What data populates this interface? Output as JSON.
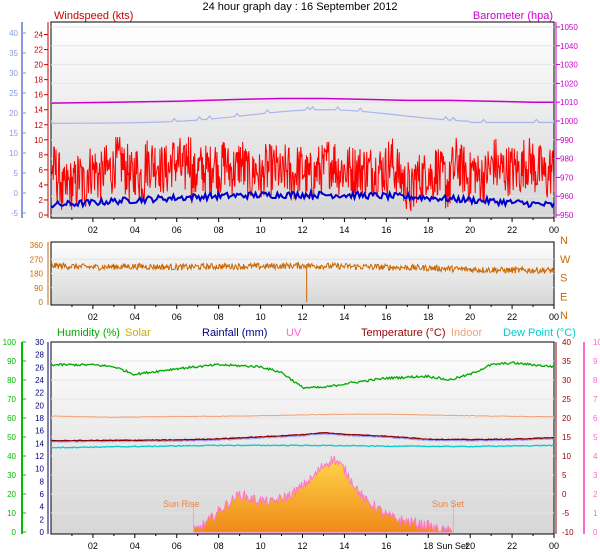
{
  "title": "24 hour graph day : 16 September 2012",
  "panel1": {
    "left_label": "Windspeed (kts)",
    "right_label": "Barometer (hpa)",
    "outer_left_ticks": [
      "40",
      "35",
      "30",
      "25",
      "20",
      "15",
      "10",
      "5",
      "0",
      "-5"
    ],
    "inner_left_ticks": [
      "24",
      "22",
      "20",
      "18",
      "16",
      "14",
      "12",
      "10",
      "8",
      "6",
      "4",
      "2",
      "0"
    ],
    "right_ticks": [
      "1050",
      "1040",
      "1030",
      "1020",
      "1010",
      "1000",
      "990",
      "980",
      "970",
      "960",
      "950"
    ]
  },
  "panel2": {
    "left_ticks": [
      "360",
      "270",
      "180",
      "90",
      "0"
    ],
    "right_ticks": [
      "N",
      "W",
      "S",
      "E",
      "N"
    ]
  },
  "panel3": {
    "labels": {
      "humidity": "Humidity (%)",
      "solar": "Solar",
      "rainfall": "Rainfall (mm)",
      "uv": "UV",
      "temperature": "Temperature (°C)",
      "indoor": "Indoor",
      "dewpoint": "Dew Point (°C)"
    },
    "humidity_ticks": [
      "100",
      "90",
      "80",
      "70",
      "60",
      "50",
      "40",
      "30",
      "20",
      "10",
      "0"
    ],
    "rain_ticks": [
      "30",
      "28",
      "26",
      "24",
      "22",
      "20",
      "18",
      "16",
      "14",
      "12",
      "10",
      "8",
      "6",
      "4",
      "2",
      "0"
    ],
    "temp_ticks": [
      "40",
      "35",
      "30",
      "25",
      "20",
      "15",
      "10",
      "5",
      "0",
      "-5",
      "-10"
    ],
    "uv_ticks": [
      "10",
      "9",
      "8",
      "7",
      "6",
      "5",
      "4",
      "3",
      "2",
      "1",
      "0"
    ],
    "sunrise_label": "Sun Rise",
    "sunset_label": "Sun Set",
    "sunset_axis_label": "Sun Set"
  },
  "x_ticks": [
    "02",
    "04",
    "06",
    "08",
    "10",
    "12",
    "14",
    "16",
    "18",
    "20",
    "22",
    "00"
  ],
  "colors": {
    "windspeed": "#ff0000",
    "windspeed_avg": "#0000cc",
    "gust_guide": "#aab4ee",
    "barometer": "#cc00cc",
    "direction": "#cc6600",
    "humidity": "#00aa00",
    "indoor": "#f4a070",
    "temperature": "#880000",
    "dewpoint": "#00cccc",
    "solar_fill": "#f5b63c",
    "uv": "#ff66cc",
    "rainfall_label": "#000080",
    "outer_axis_blue": "#8899dd",
    "axis_green": "#00bb00"
  },
  "chart_data": [
    {
      "type": "line",
      "panel": "wind_barometer",
      "x_unit": "hour",
      "series": [
        {
          "name": "Windspeed (kts)",
          "y": [
            6,
            5,
            3,
            4,
            4,
            5,
            4,
            6,
            6,
            5,
            6,
            6,
            7,
            7,
            6,
            5,
            6,
            5,
            7,
            7,
            7,
            6,
            6,
            7,
            7,
            6,
            8,
            5,
            6,
            6,
            6,
            7,
            6,
            7,
            6,
            6,
            7,
            6,
            5,
            6,
            5,
            6,
            6,
            6,
            5,
            6,
            5,
            6,
            6,
            5,
            5,
            6,
            6,
            7,
            7,
            6,
            6,
            6,
            6,
            6,
            6,
            6,
            6,
            6,
            6,
            7,
            6,
            5,
            4,
            3,
            5,
            5,
            6,
            5,
            6,
            5,
            4,
            6,
            7,
            6,
            5,
            6,
            5,
            5,
            6,
            7,
            6,
            6,
            6,
            6,
            6,
            7,
            7,
            6,
            6,
            5,
            6
          ]
        },
        {
          "name": "Barometer (hpa)",
          "x": [
            0,
            3,
            6,
            9,
            11,
            13,
            15,
            17,
            19,
            21,
            23,
            24
          ],
          "y": [
            1009.5,
            1010,
            1010.5,
            1011.5,
            1012,
            1012,
            1011.5,
            1011,
            1011,
            1010.5,
            1010,
            1010
          ]
        }
      ],
      "ylim_windspeed": [
        0,
        25
      ],
      "ylim_barometer": [
        950,
        1050
      ]
    },
    {
      "type": "line",
      "panel": "wind_direction",
      "series": [
        {
          "name": "Direction",
          "x": [
            0,
            2,
            4,
            6,
            8,
            10,
            12,
            14,
            16,
            18,
            20,
            22,
            24
          ],
          "y": [
            230,
            220,
            225,
            220,
            225,
            225,
            230,
            225,
            220,
            215,
            205,
            200,
            200
          ]
        }
      ],
      "ylim": [
        0,
        360
      ]
    },
    {
      "type": "line",
      "panel": "temp_humidity",
      "series": [
        {
          "name": "Humidity (%)",
          "x": [
            0,
            2,
            3,
            4,
            6,
            8,
            10,
            11,
            12,
            13,
            14,
            16,
            18,
            19,
            20,
            21,
            22,
            23,
            24
          ],
          "y": [
            88,
            88,
            87,
            83,
            86,
            88,
            87,
            84,
            76,
            76,
            78,
            81,
            82,
            80,
            83,
            88,
            89,
            88,
            87
          ]
        },
        {
          "name": "Indoor",
          "x": [
            0,
            3,
            6,
            9,
            12,
            14,
            16,
            18,
            21,
            24
          ],
          "y": [
            20.5,
            20.2,
            20.4,
            20.5,
            20.8,
            21,
            21,
            20.8,
            20.5,
            20.3
          ]
        },
        {
          "name": "Temperature (°C)",
          "x": [
            0,
            3,
            6,
            8,
            10,
            12,
            13,
            14,
            16,
            18,
            20,
            22,
            24
          ],
          "y": [
            14,
            14.1,
            14.2,
            14.5,
            15,
            15.6,
            16.1,
            15.7,
            15.2,
            14.4,
            14.3,
            14.4,
            14.8
          ]
        },
        {
          "name": "Dew Point (°C)",
          "x": [
            0,
            4,
            8,
            12,
            16,
            20,
            24
          ],
          "y": [
            12.2,
            12.5,
            12.8,
            12.8,
            12.6,
            12.5,
            12.8
          ]
        },
        {
          "name": "Solar",
          "x": [
            6.8,
            7.5,
            8,
            8.5,
            9,
            9.5,
            10,
            10.5,
            11,
            11.5,
            12,
            12.5,
            13,
            13.5,
            14,
            14.5,
            15,
            15.5,
            16,
            16.5,
            17,
            17.5,
            18,
            18.5,
            19.2
          ],
          "y": [
            0,
            5,
            10,
            14,
            18,
            16,
            15,
            14,
            16,
            18,
            22,
            26,
            32,
            35,
            30,
            22,
            15,
            12,
            8,
            6,
            5,
            4,
            3,
            1,
            0
          ]
        },
        {
          "name": "UV",
          "x": [
            6.8,
            8,
            9,
            10,
            11,
            12,
            13,
            13.5,
            14,
            15,
            16,
            17,
            18,
            19.2
          ],
          "y": [
            0,
            0.5,
            1.2,
            1.5,
            1.8,
            2.5,
            3.5,
            3.6,
            3,
            2,
            1.2,
            0.8,
            0.3,
            0
          ]
        }
      ]
    }
  ]
}
